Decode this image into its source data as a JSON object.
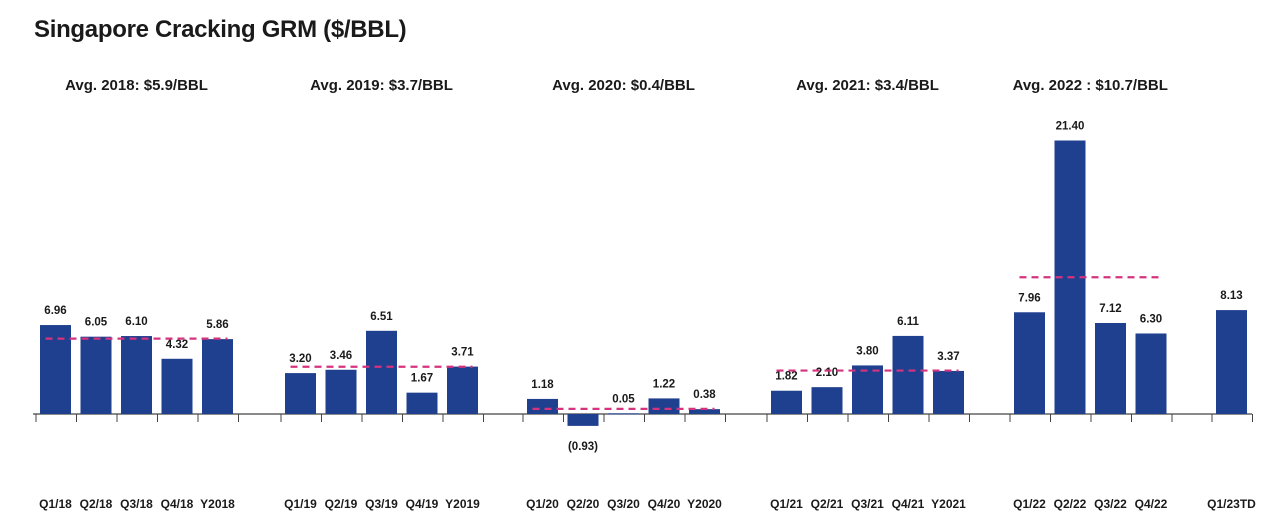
{
  "title": "Singapore Cracking GRM ($/BBL)",
  "chart_data": {
    "type": "bar",
    "title": "Singapore Cracking GRM ($/BBL)",
    "bar_color": "#1f3f8f",
    "avg_line_color": "#d6337e",
    "groups": [
      {
        "avg_label": "Avg. 2018: $5.9/BBL",
        "avg_value": 5.9,
        "bars": [
          {
            "category": "Q1/18",
            "value": 6.96,
            "label": "6.96"
          },
          {
            "category": "Q2/18",
            "value": 6.05,
            "label": "6.05"
          },
          {
            "category": "Q3/18",
            "value": 6.1,
            "label": "6.10"
          },
          {
            "category": "Q4/18",
            "value": 4.32,
            "label": "4.32"
          },
          {
            "category": "Y2018",
            "value": 5.86,
            "label": "5.86"
          }
        ]
      },
      {
        "avg_label": "Avg. 2019: $3.7/BBL",
        "avg_value": 3.7,
        "bars": [
          {
            "category": "Q1/19",
            "value": 3.2,
            "label": "3.20"
          },
          {
            "category": "Q2/19",
            "value": 3.46,
            "label": "3.46"
          },
          {
            "category": "Q3/19",
            "value": 6.51,
            "label": "6.51"
          },
          {
            "category": "Q4/19",
            "value": 1.67,
            "label": "1.67"
          },
          {
            "category": "Y2019",
            "value": 3.71,
            "label": "3.71"
          }
        ]
      },
      {
        "avg_label": "Avg. 2020: $0.4/BBL",
        "avg_value": 0.4,
        "bars": [
          {
            "category": "Q1/20",
            "value": 1.18,
            "label": "1.18"
          },
          {
            "category": "Q2/20",
            "value": -0.93,
            "label": "(0.93)"
          },
          {
            "category": "Q3/20",
            "value": 0.05,
            "label": "0.05"
          },
          {
            "category": "Q4/20",
            "value": 1.22,
            "label": "1.22"
          },
          {
            "category": "Y2020",
            "value": 0.38,
            "label": "0.38"
          }
        ]
      },
      {
        "avg_label": "Avg. 2021: $3.4/BBL",
        "avg_value": 3.4,
        "bars": [
          {
            "category": "Q1/21",
            "value": 1.82,
            "label": "1.82"
          },
          {
            "category": "Q2/21",
            "value": 2.1,
            "label": "2.10"
          },
          {
            "category": "Q3/21",
            "value": 3.8,
            "label": "3.80"
          },
          {
            "category": "Q4/21",
            "value": 6.11,
            "label": "6.11"
          },
          {
            "category": "Y2021",
            "value": 3.37,
            "label": "3.37"
          }
        ]
      },
      {
        "avg_label": "Avg. 2022 : $10.7/BBL",
        "avg_value": 10.7,
        "bars": [
          {
            "category": "Q1/22",
            "value": 7.96,
            "label": "7.96"
          },
          {
            "category": "Q2/22",
            "value": 21.4,
            "label": "21.40"
          },
          {
            "category": "Q3/22",
            "value": 7.12,
            "label": "7.12"
          },
          {
            "category": "Q4/22",
            "value": 6.3,
            "label": "6.30"
          }
        ]
      },
      {
        "avg_label": "",
        "avg_value": null,
        "bars": [
          {
            "category": "Q1/23TD",
            "value": 8.13,
            "label": "8.13"
          }
        ]
      }
    ]
  }
}
